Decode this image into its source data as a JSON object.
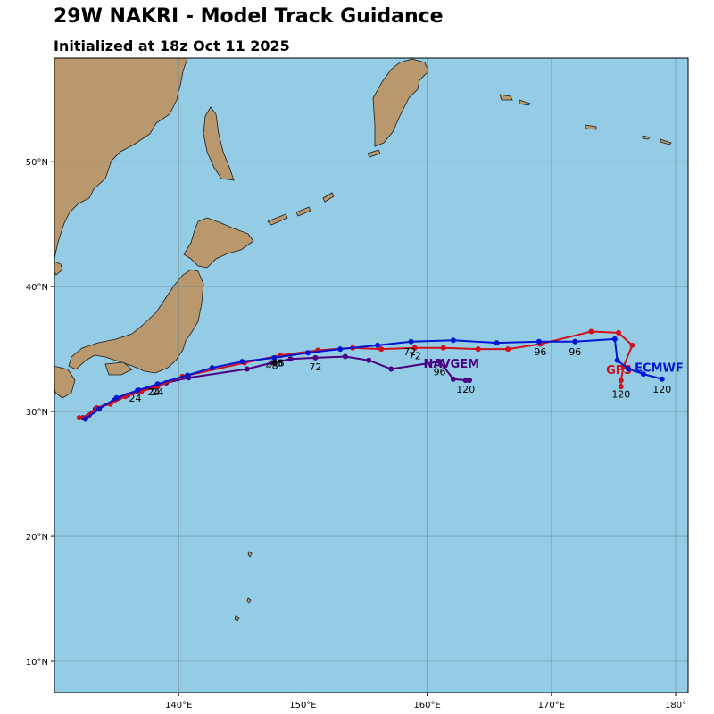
{
  "title": "29W NAKRI - Model Track Guidance",
  "subtitle": "Initialized at 18z Oct 11 2025",
  "colors": {
    "ocean": "#95CCE5",
    "land": "#B8986C",
    "coast": "#1a1a1a",
    "grid": "#6f8a92"
  },
  "chart_data": {
    "type": "map-track",
    "lon_range": [
      130,
      181
    ],
    "lat_range": [
      7.5,
      58.3
    ],
    "lon_ticks": [
      140,
      150,
      160,
      170,
      180
    ],
    "lon_tick_labels": [
      "140°E",
      "150°E",
      "160°E",
      "170°E",
      "180°"
    ],
    "lat_ticks": [
      10,
      20,
      30,
      40,
      50
    ],
    "lat_tick_labels": [
      "10°N",
      "20°N",
      "30°N",
      "40°N",
      "50°N"
    ],
    "series": [
      {
        "name": "NAVGEM",
        "color": "#4B0082",
        "points": [
          [
            132.3,
            29.5
          ],
          [
            133.3,
            30.2
          ],
          [
            134.8,
            30.9
          ],
          [
            135.9,
            31.3
          ],
          [
            136.8,
            31.7
          ],
          [
            137.9,
            31.9
          ],
          [
            139.0,
            32.3
          ],
          [
            140.8,
            32.7
          ],
          [
            145.5,
            33.4
          ],
          [
            147.5,
            33.9
          ],
          [
            149.0,
            34.2
          ],
          [
            151.0,
            34.3
          ],
          [
            153.4,
            34.4
          ],
          [
            155.3,
            34.1
          ],
          [
            157.1,
            33.4
          ],
          [
            161.0,
            34.0
          ],
          [
            162.1,
            32.6
          ],
          [
            163.1,
            32.5
          ],
          [
            163.4,
            32.5
          ]
        ],
        "labels": [
          {
            "text": "24",
            "lon": 136.5,
            "lat": 30.8
          },
          {
            "text": "48",
            "lon": 147.5,
            "lat": 33.4
          },
          {
            "text": "72",
            "lon": 151.0,
            "lat": 33.3
          },
          {
            "text": "96",
            "lon": 161.0,
            "lat": 32.9
          },
          {
            "text": "120",
            "lon": 163.1,
            "lat": 31.5
          }
        ],
        "name_pos": {
          "lon": 159.7,
          "lat": 33.5
        }
      },
      {
        "name": "GFS",
        "color": "#D0101A",
        "points": [
          [
            132.0,
            29.5
          ],
          [
            132.8,
            29.7
          ],
          [
            133.4,
            30.3
          ],
          [
            134.5,
            30.6
          ],
          [
            135.7,
            31.2
          ],
          [
            137.0,
            31.6
          ],
          [
            138.3,
            32.0
          ],
          [
            140.3,
            32.8
          ],
          [
            145.3,
            33.9
          ],
          [
            148.2,
            34.5
          ],
          [
            151.2,
            34.9
          ],
          [
            154.0,
            35.1
          ],
          [
            156.3,
            35.0
          ],
          [
            159.0,
            35.1
          ],
          [
            161.3,
            35.1
          ],
          [
            164.1,
            35.0
          ],
          [
            166.5,
            35.0
          ],
          [
            169.1,
            35.4
          ],
          [
            173.2,
            36.4
          ],
          [
            175.4,
            36.3
          ],
          [
            176.5,
            35.3
          ],
          [
            175.8,
            33.6
          ],
          [
            175.6,
            32.5
          ],
          [
            175.6,
            32.0
          ]
        ],
        "labels": [
          {
            "text": "24",
            "lon": 138.0,
            "lat": 31.3
          },
          {
            "text": "48",
            "lon": 148.0,
            "lat": 33.6
          },
          {
            "text": "72",
            "lon": 159.0,
            "lat": 34.2
          },
          {
            "text": "96",
            "lon": 169.1,
            "lat": 34.5
          },
          {
            "text": "120",
            "lon": 175.6,
            "lat": 31.1
          }
        ],
        "name_pos": {
          "lon": 174.4,
          "lat": 33.0
        }
      },
      {
        "name": "ECMWF",
        "color": "#0015D4",
        "points": [
          [
            132.5,
            29.4
          ],
          [
            133.6,
            30.2
          ],
          [
            135.0,
            31.1
          ],
          [
            136.7,
            31.7
          ],
          [
            138.3,
            32.2
          ],
          [
            140.7,
            32.9
          ],
          [
            142.7,
            33.5
          ],
          [
            145.1,
            34.0
          ],
          [
            147.7,
            34.3
          ],
          [
            150.4,
            34.7
          ],
          [
            153.0,
            35.0
          ],
          [
            156.0,
            35.3
          ],
          [
            158.7,
            35.6
          ],
          [
            162.1,
            35.7
          ],
          [
            165.6,
            35.5
          ],
          [
            169.0,
            35.6
          ],
          [
            171.9,
            35.6
          ],
          [
            175.1,
            35.8
          ],
          [
            175.3,
            34.1
          ],
          [
            176.2,
            33.4
          ],
          [
            177.4,
            33.0
          ],
          [
            178.9,
            32.6
          ]
        ],
        "labels": [
          {
            "text": "24",
            "lon": 138.3,
            "lat": 31.3
          },
          {
            "text": "48",
            "lon": 147.9,
            "lat": 33.6
          },
          {
            "text": "72",
            "lon": 158.6,
            "lat": 34.5
          },
          {
            "text": "96",
            "lon": 171.9,
            "lat": 34.5
          },
          {
            "text": "120",
            "lon": 178.9,
            "lat": 31.5
          }
        ],
        "name_pos": {
          "lon": 176.7,
          "lat": 33.2
        }
      }
    ]
  }
}
